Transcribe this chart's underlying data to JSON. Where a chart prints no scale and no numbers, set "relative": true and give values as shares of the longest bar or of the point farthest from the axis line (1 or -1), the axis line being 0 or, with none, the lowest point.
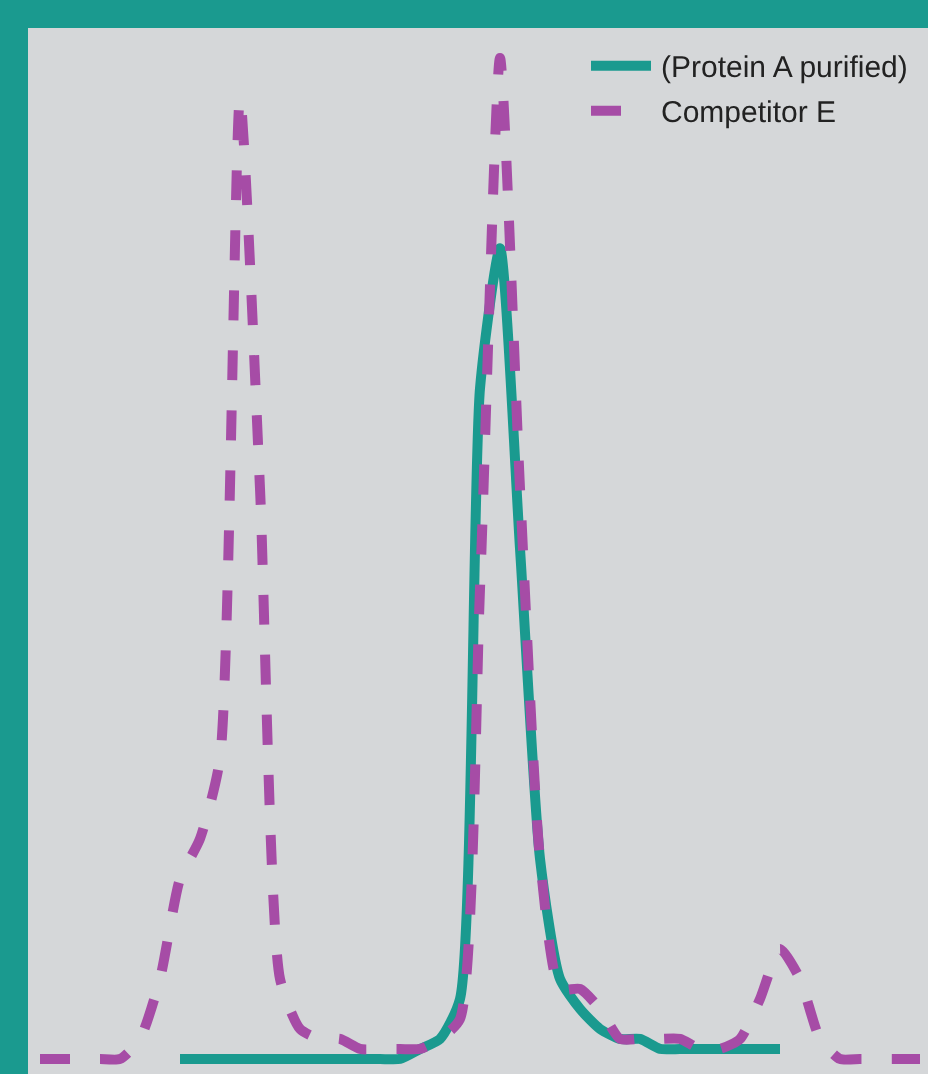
{
  "chart_data": {
    "type": "line",
    "relative": true,
    "legend": "top right",
    "marker": "none",
    "categories": [
      null,
      null,
      null,
      null,
      null,
      null,
      null,
      null,
      null,
      null,
      null,
      null,
      null,
      null,
      null,
      null,
      null,
      null,
      null,
      null,
      null,
      null,
      null,
      null,
      null,
      null,
      null,
      null,
      null,
      null,
      null,
      null,
      null,
      null,
      null,
      null,
      null,
      null,
      null,
      null,
      null,
      null,
      null,
      null,
      null
    ],
    "series": [
      {
        "name": "(Protein A purified)",
        "color": "#1a9a8f",
        "line_style": "solid",
        "values": [
          null,
          null,
          null,
          null,
          null,
          null,
          null,
          0.0,
          0.0,
          0.0,
          0.0,
          0.0,
          0.0,
          0.0,
          0.0,
          0.0,
          0.0,
          0.0,
          0.0,
          0.01,
          0.02,
          0.06,
          0.67,
          0.81,
          0.51,
          0.2,
          0.08,
          0.05,
          0.03,
          0.02,
          0.02,
          0.01,
          0.01,
          0.01,
          0.01,
          0.01,
          0.01,
          0.01,
          null,
          null,
          null,
          null,
          null,
          null,
          null
        ]
      },
      {
        "name": "Competitor E",
        "color": "#a64ca6",
        "line_style": "dashed",
        "values": [
          0.0,
          0.0,
          0.0,
          0.0,
          0.0,
          0.02,
          0.08,
          0.18,
          0.22,
          0.3,
          0.96,
          0.57,
          0.08,
          0.03,
          0.02,
          0.02,
          0.01,
          0.01,
          0.01,
          0.01,
          0.02,
          0.04,
          0.47,
          1.0,
          0.57,
          0.2,
          0.07,
          0.07,
          0.05,
          0.02,
          0.02,
          0.02,
          0.02,
          0.01,
          0.01,
          0.02,
          0.06,
          0.11,
          0.08,
          0.02,
          0.0,
          0.0,
          0.0,
          0.0,
          0.0
        ]
      }
    ]
  }
}
